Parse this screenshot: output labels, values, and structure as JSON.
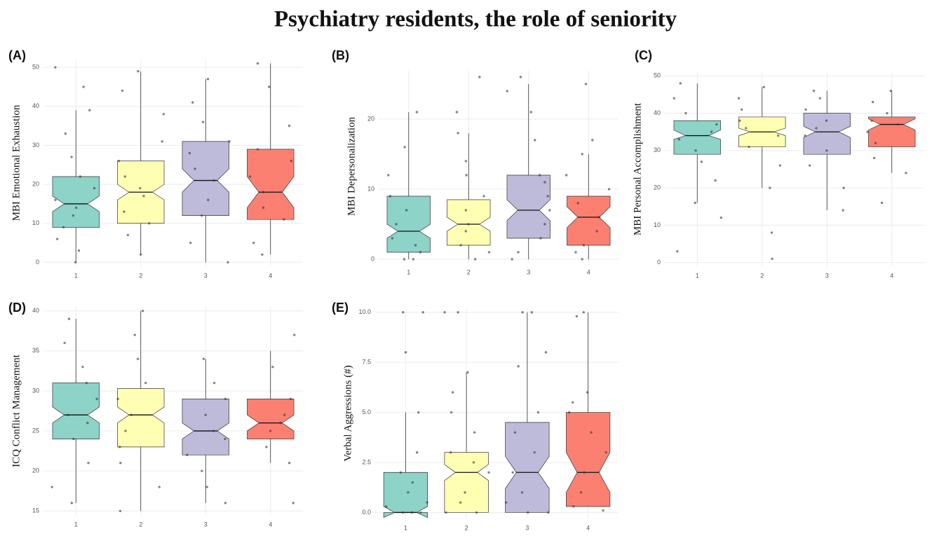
{
  "title": "Psychiatry residents, the role of seniority",
  "chart_data": [
    {
      "type": "box",
      "panel": "(A)",
      "y_label": "MBI Emotional Exhaustion",
      "categories": [
        "1",
        "2",
        "3",
        "4"
      ],
      "colors": [
        "#8dd3c7",
        "#ffffb3",
        "#bebada",
        "#fb8072"
      ],
      "ylim": [
        -1,
        52
      ],
      "yticks": [
        0,
        10,
        20,
        30,
        40,
        50
      ],
      "grid": true,
      "boxes": [
        {
          "min": 0,
          "q1": 9,
          "median": 15,
          "q3": 22,
          "max": 39,
          "notch": [
            13,
            17
          ],
          "points": [
            0,
            3,
            6,
            9,
            12,
            14,
            16,
            19,
            22,
            27,
            33,
            39,
            45,
            50
          ]
        },
        {
          "min": 2,
          "q1": 10,
          "median": 18,
          "q3": 26,
          "max": 49,
          "notch": [
            16,
            20
          ],
          "points": [
            2,
            7,
            10,
            13,
            17,
            19,
            22,
            26,
            31,
            38,
            44,
            49
          ]
        },
        {
          "min": 0,
          "q1": 12,
          "median": 21,
          "q3": 31,
          "max": 47,
          "notch": [
            18,
            24
          ],
          "points": [
            0,
            5,
            12,
            16,
            21,
            24,
            28,
            31,
            36,
            41,
            47
          ]
        },
        {
          "min": 2,
          "q1": 11,
          "median": 18,
          "q3": 29,
          "max": 51,
          "notch": [
            14,
            22
          ],
          "points": [
            2,
            5,
            11,
            14,
            18,
            22,
            26,
            29,
            35,
            45,
            51
          ]
        }
      ]
    },
    {
      "type": "box",
      "panel": "(B)",
      "y_label": "MBI Depersonalization",
      "categories": [
        "1",
        "2",
        "3",
        "4"
      ],
      "colors": [
        "#8dd3c7",
        "#ffffb3",
        "#bebada",
        "#fb8072"
      ],
      "ylim": [
        -0.5,
        27
      ],
      "yticks": [
        0,
        10,
        20
      ],
      "grid": true,
      "boxes": [
        {
          "min": 0,
          "q1": 1,
          "median": 4,
          "q3": 9,
          "max": 21,
          "notch": [
            3,
            5
          ],
          "points": [
            0,
            0,
            1,
            2,
            3,
            5,
            7,
            9,
            12,
            16,
            21
          ]
        },
        {
          "min": 0,
          "q1": 2,
          "median": 5,
          "q3": 8.5,
          "max": 18,
          "notch": [
            4,
            6
          ],
          "points": [
            0,
            1,
            2,
            4,
            5,
            7,
            9,
            12,
            14,
            18,
            21,
            26
          ]
        },
        {
          "min": 0,
          "q1": 3,
          "median": 7,
          "q3": 12,
          "max": 25,
          "notch": [
            5.5,
            8.5
          ],
          "points": [
            0,
            1,
            3,
            5,
            7,
            9,
            11,
            12,
            17,
            21,
            24,
            26
          ]
        },
        {
          "min": 0,
          "q1": 2,
          "median": 6,
          "q3": 9,
          "max": 15,
          "notch": [
            4.5,
            7.5
          ],
          "points": [
            0,
            1,
            2,
            4,
            6,
            8,
            10,
            12,
            15,
            17,
            25
          ]
        }
      ]
    },
    {
      "type": "box",
      "panel": "(C)",
      "y_label": "MBI Personal Accomplishment",
      "categories": [
        "1",
        "2",
        "3",
        "4"
      ],
      "colors": [
        "#8dd3c7",
        "#ffffb3",
        "#bebada",
        "#fb8072"
      ],
      "ylim": [
        -1,
        51
      ],
      "yticks": [
        0,
        10,
        20,
        30,
        40,
        50
      ],
      "grid": true,
      "boxes": [
        {
          "min": 16,
          "q1": 29,
          "median": 34,
          "q3": 38,
          "max": 48,
          "notch": [
            33,
            35.5
          ],
          "points": [
            3,
            12,
            16,
            22,
            27,
            30,
            33,
            35,
            37,
            40,
            44,
            48
          ]
        },
        {
          "min": 20,
          "q1": 31,
          "median": 35,
          "q3": 39,
          "max": 47,
          "notch": [
            34,
            36
          ],
          "points": [
            1,
            8,
            20,
            26,
            31,
            34,
            36,
            38,
            41,
            44,
            47
          ]
        },
        {
          "min": 14,
          "q1": 29,
          "median": 35,
          "q3": 40,
          "max": 46,
          "notch": [
            33.5,
            36.5
          ],
          "points": [
            14,
            20,
            26,
            30,
            34,
            36,
            38,
            41,
            44,
            46
          ]
        },
        {
          "min": 24,
          "q1": 31,
          "median": 37,
          "q3": 39,
          "max": 46,
          "notch": [
            35.5,
            38.5
          ],
          "points": [
            16,
            24,
            28,
            32,
            35,
            37,
            38,
            40,
            43,
            46
          ]
        }
      ]
    },
    {
      "type": "box",
      "panel": "(D)",
      "y_label": "ICQ Conflict Management",
      "categories": [
        "1",
        "2",
        "3",
        "4"
      ],
      "colors": [
        "#8dd3c7",
        "#ffffb3",
        "#bebada",
        "#fb8072"
      ],
      "ylim": [
        14.5,
        40.5
      ],
      "yticks": [
        15,
        20,
        25,
        30,
        35,
        40
      ],
      "grid": true,
      "boxes": [
        {
          "min": 16,
          "q1": 24,
          "median": 27,
          "q3": 31,
          "max": 39,
          "notch": [
            26,
            28
          ],
          "points": [
            16,
            18,
            21,
            24,
            26,
            27,
            29,
            31,
            33,
            36,
            39
          ]
        },
        {
          "min": 15,
          "q1": 23,
          "median": 27,
          "q3": 30.3,
          "max": 40,
          "notch": [
            26,
            28
          ],
          "points": [
            15,
            18,
            21,
            23,
            25,
            27,
            29,
            31,
            34,
            37,
            40
          ]
        },
        {
          "min": 16,
          "q1": 22,
          "median": 25,
          "q3": 29,
          "max": 34,
          "notch": [
            24,
            26
          ],
          "points": [
            16,
            18,
            20,
            22,
            24,
            25,
            27,
            29,
            31,
            34
          ]
        },
        {
          "min": 21,
          "q1": 24,
          "median": 26,
          "q3": 29,
          "max": 35,
          "notch": [
            25,
            27
          ],
          "points": [
            16,
            21,
            23,
            25,
            26,
            27,
            29,
            33,
            37
          ]
        }
      ]
    },
    {
      "type": "box",
      "panel": "(E)",
      "y_label": "Verbal Aggressions (#)",
      "categories": [
        "1",
        "2",
        "3",
        "4"
      ],
      "colors": [
        "#8dd3c7",
        "#ffffb3",
        "#bebada",
        "#fb8072"
      ],
      "ylim": [
        -0.3,
        10.2
      ],
      "yticks": [
        {
          "value": 0,
          "label": "0.0"
        },
        {
          "value": 2.5,
          "label": "2.5"
        },
        {
          "value": 5,
          "label": "5.0"
        },
        {
          "value": 7.5,
          "label": "7.5"
        },
        {
          "value": 10,
          "label": "10.0"
        }
      ],
      "grid": true,
      "boxes": [
        {
          "min": 0,
          "q1": 0,
          "median": 0,
          "q3": 2,
          "max": 5,
          "notch": [
            -0.25,
            0.3
          ],
          "points": [
            0,
            0,
            0,
            0.3,
            0.5,
            1,
            1.5,
            2,
            3,
            5,
            8,
            10,
            10
          ]
        },
        {
          "min": 0,
          "q1": 0,
          "median": 2,
          "q3": 3,
          "max": 7,
          "notch": [
            1.6,
            2.4
          ],
          "points": [
            0,
            0,
            0.5,
            1,
            2,
            2.5,
            3,
            4,
            5,
            6,
            7,
            10,
            10
          ]
        },
        {
          "min": 0,
          "q1": 0,
          "median": 2,
          "q3": 4.5,
          "max": 10,
          "notch": [
            1.2,
            2.8
          ],
          "points": [
            0,
            0,
            0.5,
            1,
            2,
            3,
            4,
            5,
            7.3,
            8,
            10,
            10
          ]
        },
        {
          "min": 0.3,
          "q1": 0.3,
          "median": 2,
          "q3": 5,
          "max": 10,
          "notch": [
            1,
            3
          ],
          "points": [
            0.1,
            0.3,
            1,
            2,
            3,
            4,
            5,
            5.5,
            6,
            9.8,
            10
          ]
        }
      ]
    }
  ]
}
